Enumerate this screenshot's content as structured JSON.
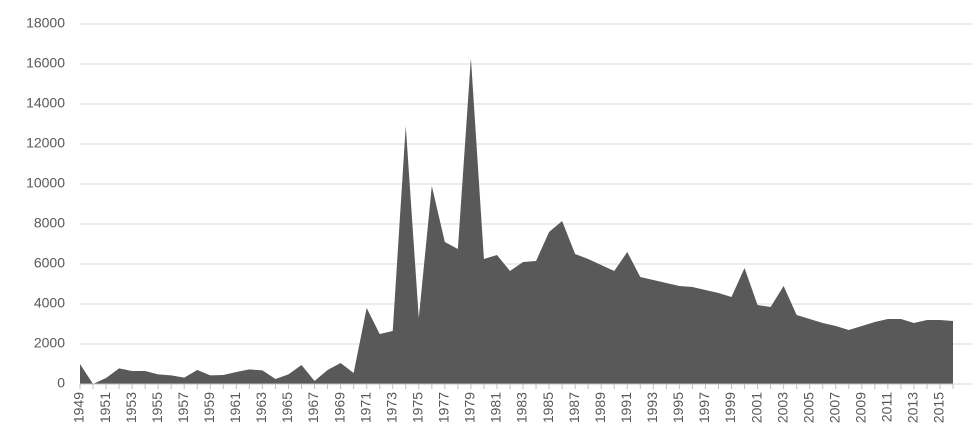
{
  "chart_data": {
    "type": "area",
    "color": "#595959",
    "grid": true,
    "categories": [
      "1949",
      null,
      "1951",
      null,
      "1953",
      null,
      "1955",
      null,
      "1957",
      null,
      "1959",
      null,
      "1961",
      null,
      "1963",
      null,
      "1965",
      null,
      "1967",
      null,
      "1969",
      null,
      "1971",
      null,
      "1973",
      null,
      "1975",
      null,
      "1977",
      null,
      "1979",
      null,
      "1981",
      null,
      "1983",
      null,
      "1985",
      null,
      "1987",
      null,
      "1989",
      null,
      "1991",
      null,
      "1993",
      null,
      "1995",
      null,
      "1997",
      null,
      "1999",
      null,
      "2001",
      null,
      "2003",
      null,
      "2005",
      null,
      "2007",
      null,
      "2009",
      null,
      "2011",
      null,
      "2013",
      null,
      "2015",
      null
    ],
    "values": [
      1000,
      0,
      300,
      780,
      650,
      650,
      480,
      430,
      320,
      700,
      430,
      450,
      600,
      730,
      680,
      250,
      480,
      950,
      150,
      700,
      1050,
      550,
      3800,
      2500,
      2650,
      12900,
      3300,
      9900,
      7100,
      6750,
      16300,
      6250,
      6450,
      5650,
      6100,
      6150,
      7600,
      8150,
      6500,
      6250,
      5950,
      5650,
      6600,
      5350,
      5200,
      5050,
      4900,
      4850,
      4700,
      4550,
      4350,
      5800,
      3950,
      3850,
      4900,
      3450,
      3250,
      3050,
      2900,
      2700,
      2900,
      3100,
      3250,
      3250,
      3050,
      3200,
      3200,
      3150
    ],
    "ylim": [
      0,
      18000
    ],
    "yticks": [
      0,
      2000,
      4000,
      6000,
      8000,
      10000,
      12000,
      14000,
      16000,
      18000
    ]
  }
}
